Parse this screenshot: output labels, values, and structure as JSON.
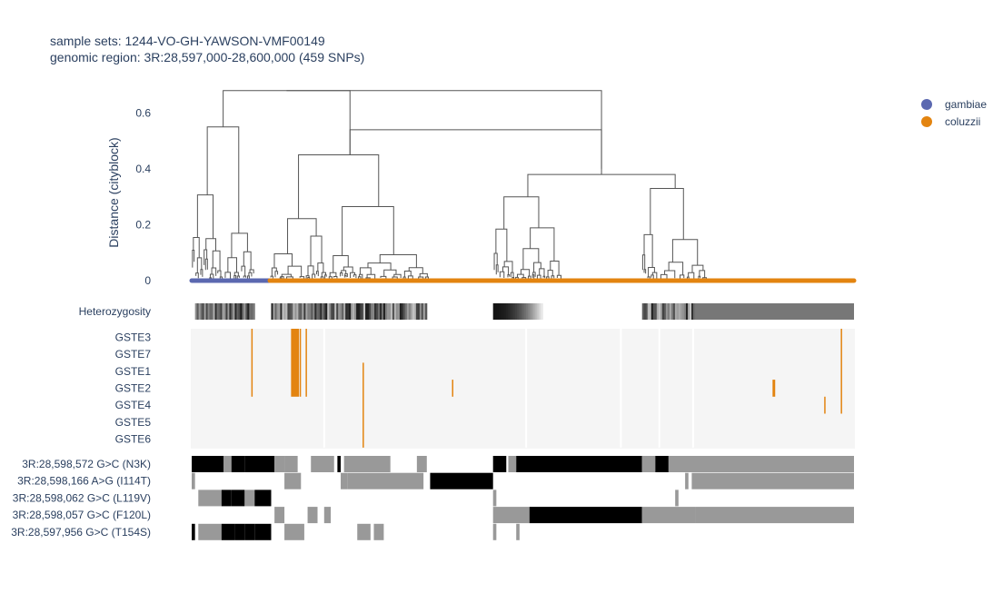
{
  "title_lines": [
    "sample sets: 1244-VO-GH-YAWSON-VMF00149",
    "genomic region: 3R:28,597,000-28,600,000 (459 SNPs)"
  ],
  "chart_data": {
    "type": "dendrogram",
    "ylabel": "Distance (cityblock)",
    "ylim": [
      0,
      0.65
    ],
    "yticks": [
      0,
      0.2,
      0.4,
      0.6
    ],
    "ytick_labels": [
      "0",
      "0.2",
      "0.4",
      "0.6"
    ],
    "grid": false,
    "legend_position": "top-right",
    "legend": [
      {
        "name": "gambiae",
        "color": "#5b68b0"
      },
      {
        "name": "coluzzii",
        "color": "#e38410"
      }
    ],
    "leaf_groups": [
      {
        "name": "gambiae",
        "from": 0.0,
        "to": 0.118
      },
      {
        "name": "coluzzii",
        "from": 0.118,
        "to": 1.0
      }
    ],
    "top_merges": [
      {
        "x": 0.035,
        "height": 0.55
      },
      {
        "x": 0.074,
        "height": 0.55
      },
      {
        "x": 0.118,
        "height": 0.6
      },
      {
        "x": 0.318,
        "height": 0.6
      },
      {
        "x": 0.168,
        "height": 0.6
      },
      {
        "x": 0.6,
        "height": 0.53
      }
    ],
    "clusters": [
      {
        "start": 0.0,
        "end": 0.095,
        "top": 0.55,
        "decay": 1.8
      },
      {
        "start": 0.118,
        "end": 0.36,
        "top": 0.45,
        "decay": 1.5
      },
      {
        "start": 0.455,
        "end": 0.56,
        "top": 0.3,
        "decay": 2.2
      },
      {
        "start": 0.68,
        "end": 0.78,
        "top": 0.33,
        "decay": 2.4
      }
    ],
    "heterozygosity": {
      "label": "Heterozygosity",
      "segments": [
        {
          "from": 0.005,
          "to": 0.095,
          "shade": "mixed-dark"
        },
        {
          "from": 0.12,
          "to": 0.355,
          "shade": "mixed-dark"
        },
        {
          "from": 0.455,
          "to": 0.53,
          "shade": "dark-fading"
        },
        {
          "from": 0.68,
          "to": 0.76,
          "shade": "mixed-dark"
        },
        {
          "from": 0.76,
          "to": 1.0,
          "shade": "medium-gray"
        }
      ]
    },
    "copy_number": {
      "rows": [
        "GSTE3",
        "GSTE7",
        "GSTE1",
        "GSTE2",
        "GSTE4",
        "GSTE5",
        "GSTE6"
      ],
      "background": "#f5f5f5",
      "amplified_color": "#e38410",
      "separator_positions": [
        0.2,
        0.505,
        0.648,
        0.706,
        0.757
      ],
      "amplifications": [
        {
          "pos": 0.09,
          "rows": [
            0,
            3
          ]
        },
        {
          "pos": 0.15,
          "rows": [
            0,
            3
          ],
          "width": 0.012
        },
        {
          "pos": 0.163,
          "rows": [
            0,
            3
          ]
        },
        {
          "pos": 0.172,
          "rows": [
            0,
            3
          ]
        },
        {
          "pos": 0.258,
          "rows": [
            2,
            6
          ]
        },
        {
          "pos": 0.393,
          "rows": [
            3,
            3
          ]
        },
        {
          "pos": 0.877,
          "rows": [
            3,
            3
          ],
          "width": 0.004
        },
        {
          "pos": 0.955,
          "rows": [
            4,
            4
          ]
        },
        {
          "pos": 0.98,
          "rows": [
            0,
            4
          ]
        }
      ]
    },
    "snp_rows": [
      {
        "label": "3R:28,598,572 G>C (N3K)",
        "segments": [
          [
            0.0,
            0.048,
            "alt"
          ],
          [
            0.048,
            0.06,
            "het"
          ],
          [
            0.06,
            0.08,
            "alt"
          ],
          [
            0.08,
            0.125,
            "alt"
          ],
          [
            0.125,
            0.14,
            "het"
          ],
          [
            0.14,
            0.16,
            "het"
          ],
          [
            0.18,
            0.215,
            "het"
          ],
          [
            0.22,
            0.225,
            "alt"
          ],
          [
            0.23,
            0.3,
            "het"
          ],
          [
            0.34,
            0.355,
            "het"
          ],
          [
            0.455,
            0.475,
            "alt"
          ],
          [
            0.478,
            0.49,
            "het"
          ],
          [
            0.49,
            0.5,
            "alt"
          ],
          [
            0.5,
            0.68,
            "alt"
          ],
          [
            0.68,
            0.7,
            "het"
          ],
          [
            0.7,
            0.72,
            "alt"
          ],
          [
            0.72,
            1.0,
            "het"
          ]
        ]
      },
      {
        "label": "3R:28,598,166 A>G (I114T)",
        "segments": [
          [
            0.0,
            0.005,
            "het"
          ],
          [
            0.14,
            0.165,
            "het"
          ],
          [
            0.225,
            0.235,
            "het"
          ],
          [
            0.235,
            0.35,
            "het"
          ],
          [
            0.36,
            0.455,
            "alt"
          ],
          [
            0.745,
            0.75,
            "het"
          ],
          [
            0.755,
            1.0,
            "het"
          ]
        ]
      },
      {
        "label": "3R:28,598,062 G>C (L119V)",
        "segments": [
          [
            0.01,
            0.045,
            "het"
          ],
          [
            0.045,
            0.06,
            "alt"
          ],
          [
            0.06,
            0.08,
            "alt"
          ],
          [
            0.08,
            0.095,
            "het"
          ],
          [
            0.095,
            0.12,
            "alt"
          ],
          [
            0.455,
            0.46,
            "het"
          ],
          [
            0.73,
            0.735,
            "het"
          ]
        ]
      },
      {
        "label": "3R:28,598,057 G>C (F120L)",
        "segments": [
          [
            0.125,
            0.14,
            "het"
          ],
          [
            0.175,
            0.19,
            "het"
          ],
          [
            0.2,
            0.21,
            "het"
          ],
          [
            0.455,
            0.51,
            "het"
          ],
          [
            0.51,
            0.68,
            "alt"
          ],
          [
            0.68,
            0.76,
            "het"
          ],
          [
            0.76,
            1.0,
            "het"
          ]
        ]
      },
      {
        "label": "3R:28,597,956 G>C (T154S)",
        "segments": [
          [
            0.0,
            0.005,
            "alt"
          ],
          [
            0.01,
            0.045,
            "het"
          ],
          [
            0.045,
            0.065,
            "alt"
          ],
          [
            0.065,
            0.08,
            "alt"
          ],
          [
            0.08,
            0.095,
            "alt"
          ],
          [
            0.095,
            0.12,
            "alt"
          ],
          [
            0.14,
            0.17,
            "het"
          ],
          [
            0.25,
            0.27,
            "het"
          ],
          [
            0.275,
            0.29,
            "het"
          ],
          [
            0.455,
            0.46,
            "het"
          ],
          [
            0.49,
            0.495,
            "het"
          ]
        ]
      }
    ],
    "genotype_colors": {
      "alt": "#000000",
      "het": "#999999",
      "ref": "#ffffff"
    }
  }
}
